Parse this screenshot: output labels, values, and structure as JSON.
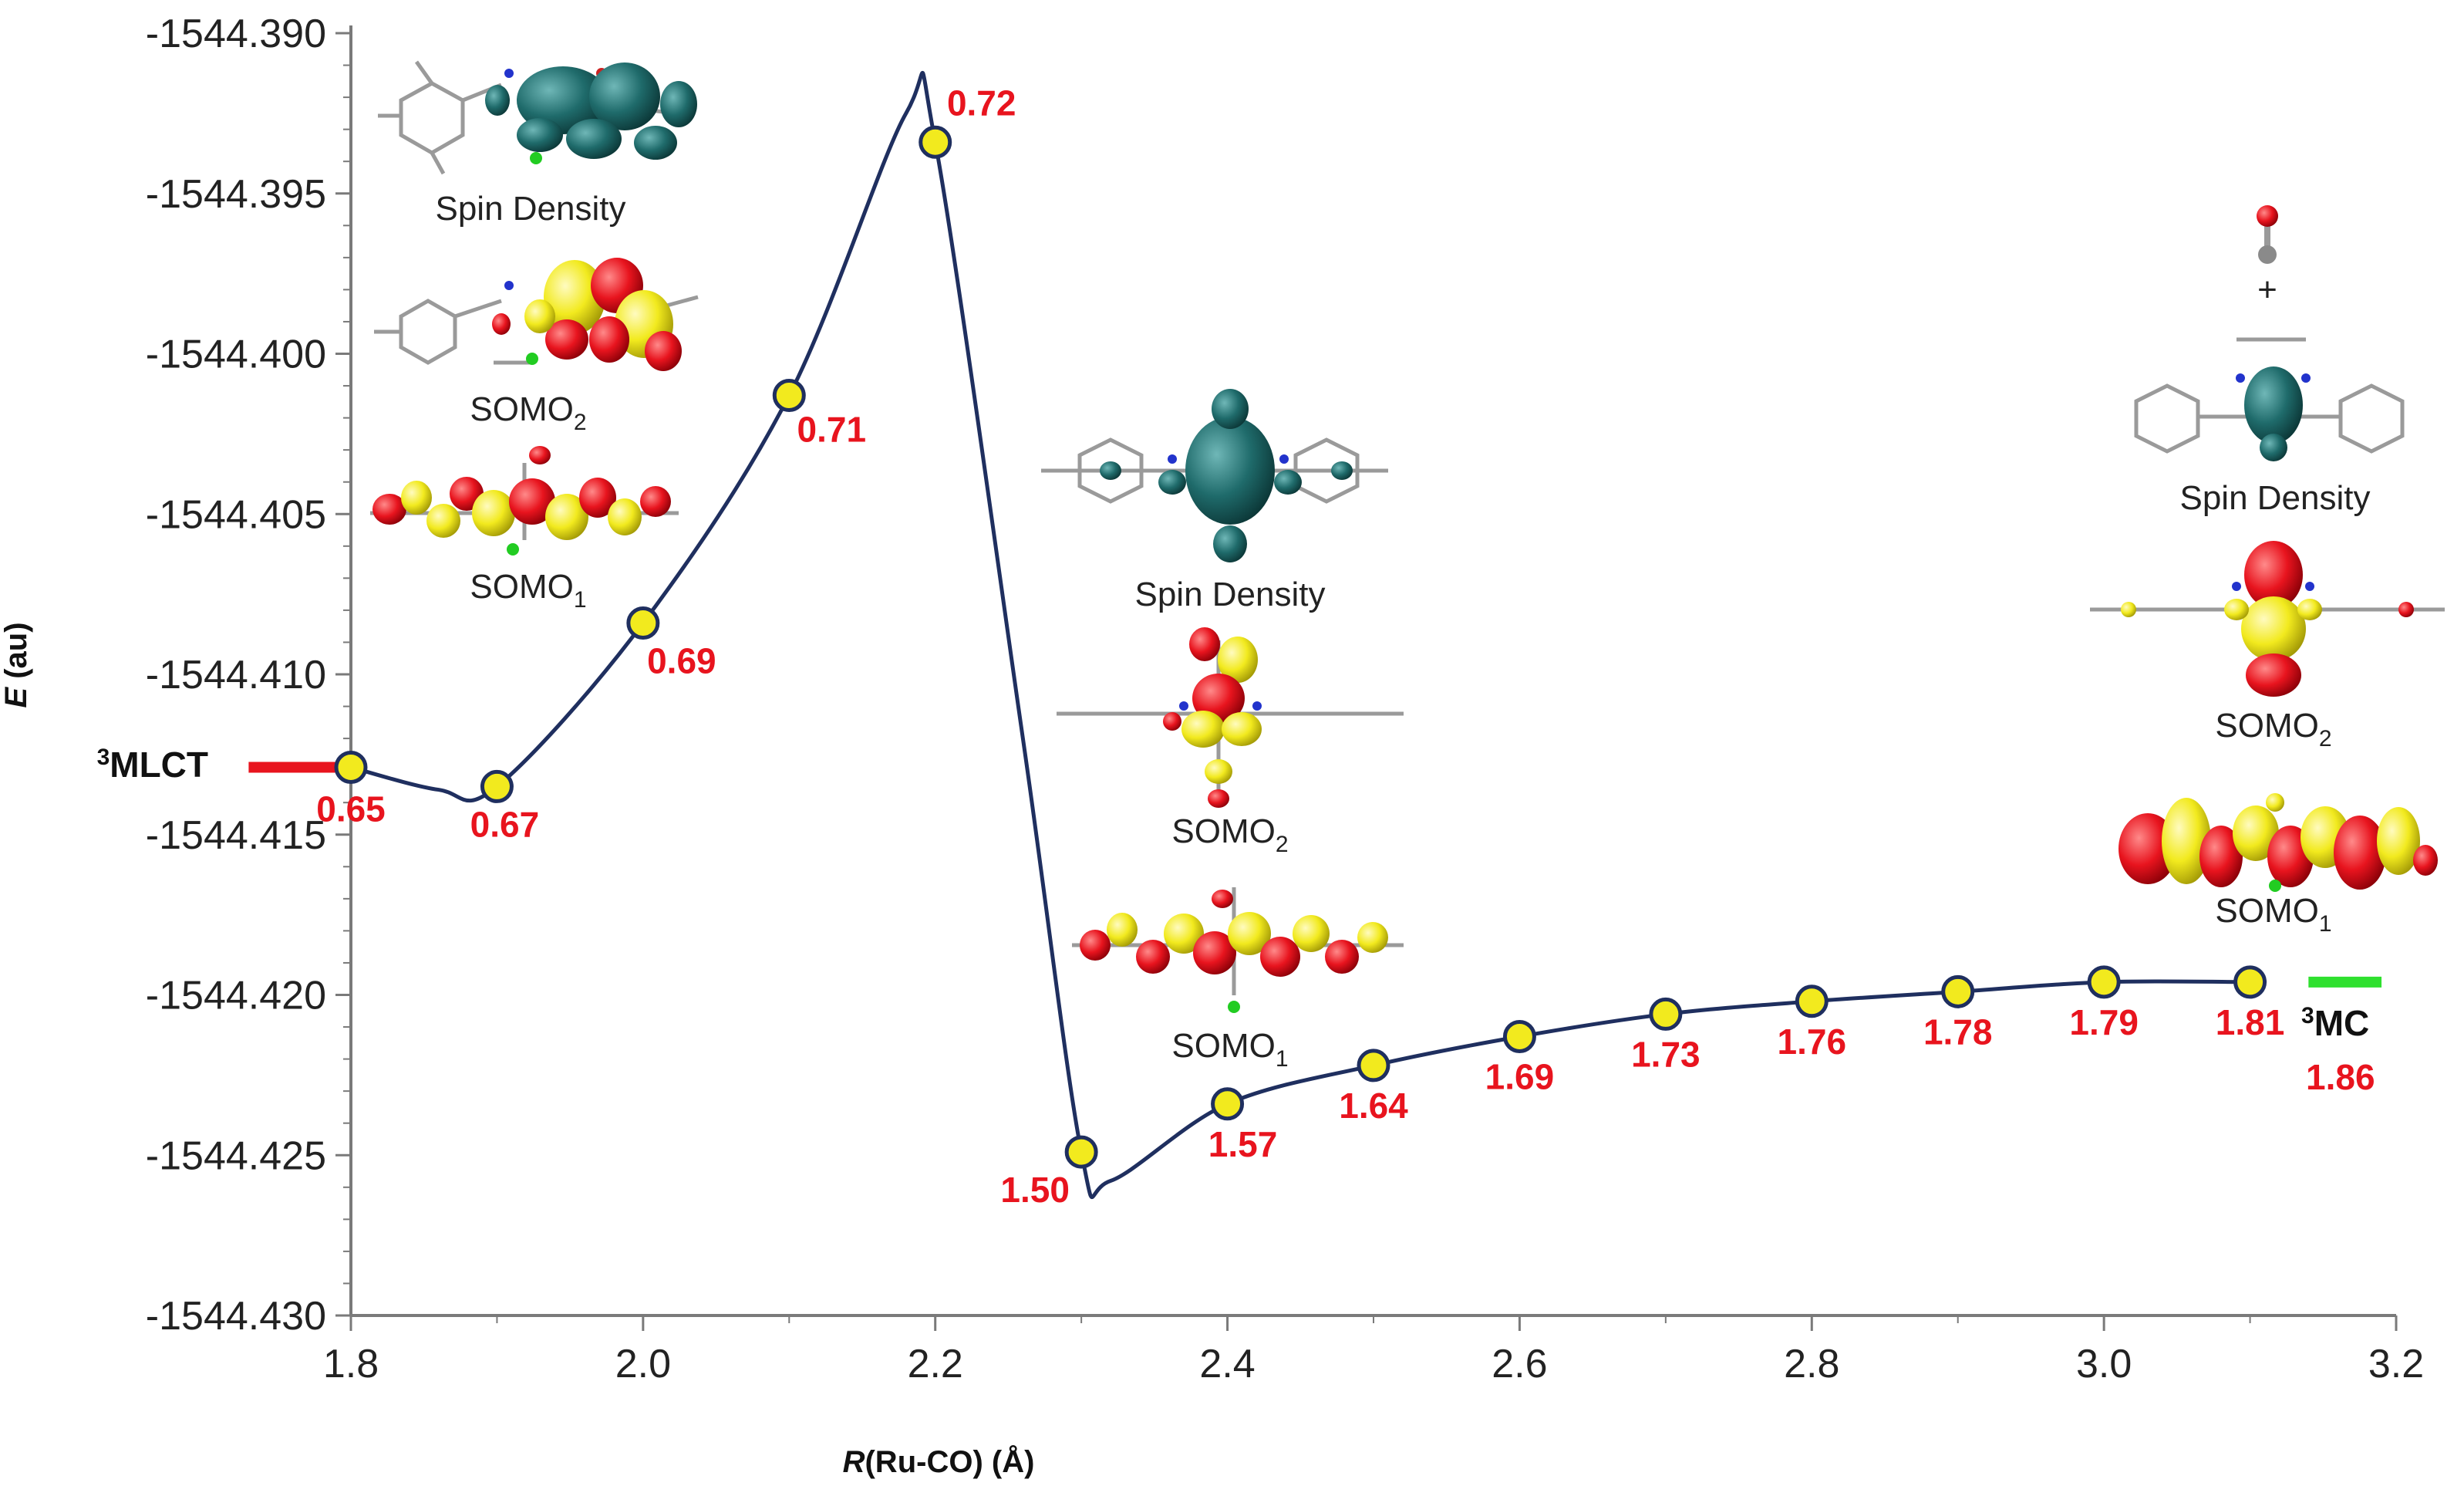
{
  "chart_data": {
    "type": "line",
    "title": "",
    "xlabel_italic": "R",
    "xlabel_rest": "(Ru-CO) (Å)",
    "ylabel_italic": "E",
    "ylabel_rest": " (au)",
    "xlim": [
      1.8,
      3.2
    ],
    "ylim": [
      -1544.43,
      -1544.39
    ],
    "x_ticks": [
      1.8,
      2.0,
      2.2,
      2.4,
      2.6,
      2.8,
      3.0,
      3.2
    ],
    "x_tick_labels": [
      "1.8",
      "2.0",
      "2.2",
      "2.4",
      "2.6",
      "2.8",
      "3.0",
      "3.2"
    ],
    "y_ticks": [
      -1544.39,
      -1544.395,
      -1544.4,
      -1544.405,
      -1544.41,
      -1544.415,
      -1544.42,
      -1544.425,
      -1544.43
    ],
    "y_tick_labels": [
      "-1544.390",
      "-1544.395",
      "-1544.400",
      "-1544.405",
      "-1544.410",
      "-1544.415",
      "-1544.420",
      "-1544.425",
      "-1544.430"
    ],
    "x": [
      1.8,
      1.9,
      2.0,
      2.1,
      2.2,
      2.3,
      2.4,
      2.5,
      2.6,
      2.7,
      2.8,
      2.9,
      3.0,
      3.1
    ],
    "y": [
      -1544.4129,
      -1544.4135,
      -1544.4084,
      -1544.4013,
      -1544.3934,
      -1544.4249,
      -1544.4234,
      -1544.4222,
      -1544.4213,
      -1544.4206,
      -1544.4202,
      -1544.4199,
      -1544.4196,
      -1544.4196
    ],
    "point_labels": [
      "0.65",
      "0.67",
      "0.69",
      "0.71",
      "0.72",
      "1.50",
      "1.57",
      "1.64",
      "1.69",
      "1.73",
      "1.76",
      "1.78",
      "1.79",
      "1.81"
    ],
    "curve_control_points": [
      {
        "x": 1.8,
        "y": -1544.4129
      },
      {
        "x": 1.86,
        "y": -1544.4136
      },
      {
        "x": 1.9,
        "y": -1544.4135
      },
      {
        "x": 2.0,
        "y": -1544.4084
      },
      {
        "x": 2.1,
        "y": -1544.4013
      },
      {
        "x": 2.18,
        "y": -1544.3925
      },
      {
        "x": 2.2,
        "y": -1544.3934
      },
      {
        "x": 2.26,
        "y": -1544.412
      },
      {
        "x": 2.3,
        "y": -1544.4249
      },
      {
        "x": 2.32,
        "y": -1544.4258
      },
      {
        "x": 2.4,
        "y": -1544.4234
      },
      {
        "x": 2.5,
        "y": -1544.4222
      },
      {
        "x": 2.6,
        "y": -1544.4213
      },
      {
        "x": 2.7,
        "y": -1544.4206
      },
      {
        "x": 2.8,
        "y": -1544.4202
      },
      {
        "x": 2.9,
        "y": -1544.4199
      },
      {
        "x": 3.0,
        "y": -1544.4196
      },
      {
        "x": 3.1,
        "y": -1544.4196
      }
    ],
    "reference_levels": [
      {
        "name": "3MLCT",
        "sup": "3",
        "text": "MLCT",
        "x_start": 1.73,
        "x_end": 1.79,
        "y": -1544.4129,
        "color": "#e8141e"
      },
      {
        "name": "3MC",
        "sup": "3",
        "text": "MC",
        "value_label": "1.86",
        "x_start": 3.14,
        "x_end": 3.19,
        "y": -1544.4196,
        "color": "#2fe02f"
      }
    ],
    "orbital_captions": [
      {
        "id": "left-spin",
        "text": "Spin Density",
        "sub": ""
      },
      {
        "id": "left-somo2",
        "text": "SOMO",
        "sub": "2"
      },
      {
        "id": "left-somo1",
        "text": "SOMO",
        "sub": "1"
      },
      {
        "id": "mid-spin",
        "text": "Spin Density",
        "sub": ""
      },
      {
        "id": "mid-somo2",
        "text": "SOMO",
        "sub": "2"
      },
      {
        "id": "mid-somo1",
        "text": "SOMO",
        "sub": "1"
      },
      {
        "id": "right-spin",
        "text": "Spin Density",
        "sub": ""
      },
      {
        "id": "right-somo2",
        "text": "SOMO",
        "sub": "2"
      },
      {
        "id": "right-somo1",
        "text": "SOMO",
        "sub": "1"
      }
    ],
    "dissociated_co_plus": "+"
  },
  "colors": {
    "curve": "#1f2f5f",
    "marker_fill": "#f2ea1e",
    "marker_stroke": "#1f2f5f",
    "point_label": "#e8141e",
    "spin_density": "#1f6b6b",
    "orbital_positive": "#f2ea1e",
    "orbital_negative": "#e8141e"
  }
}
